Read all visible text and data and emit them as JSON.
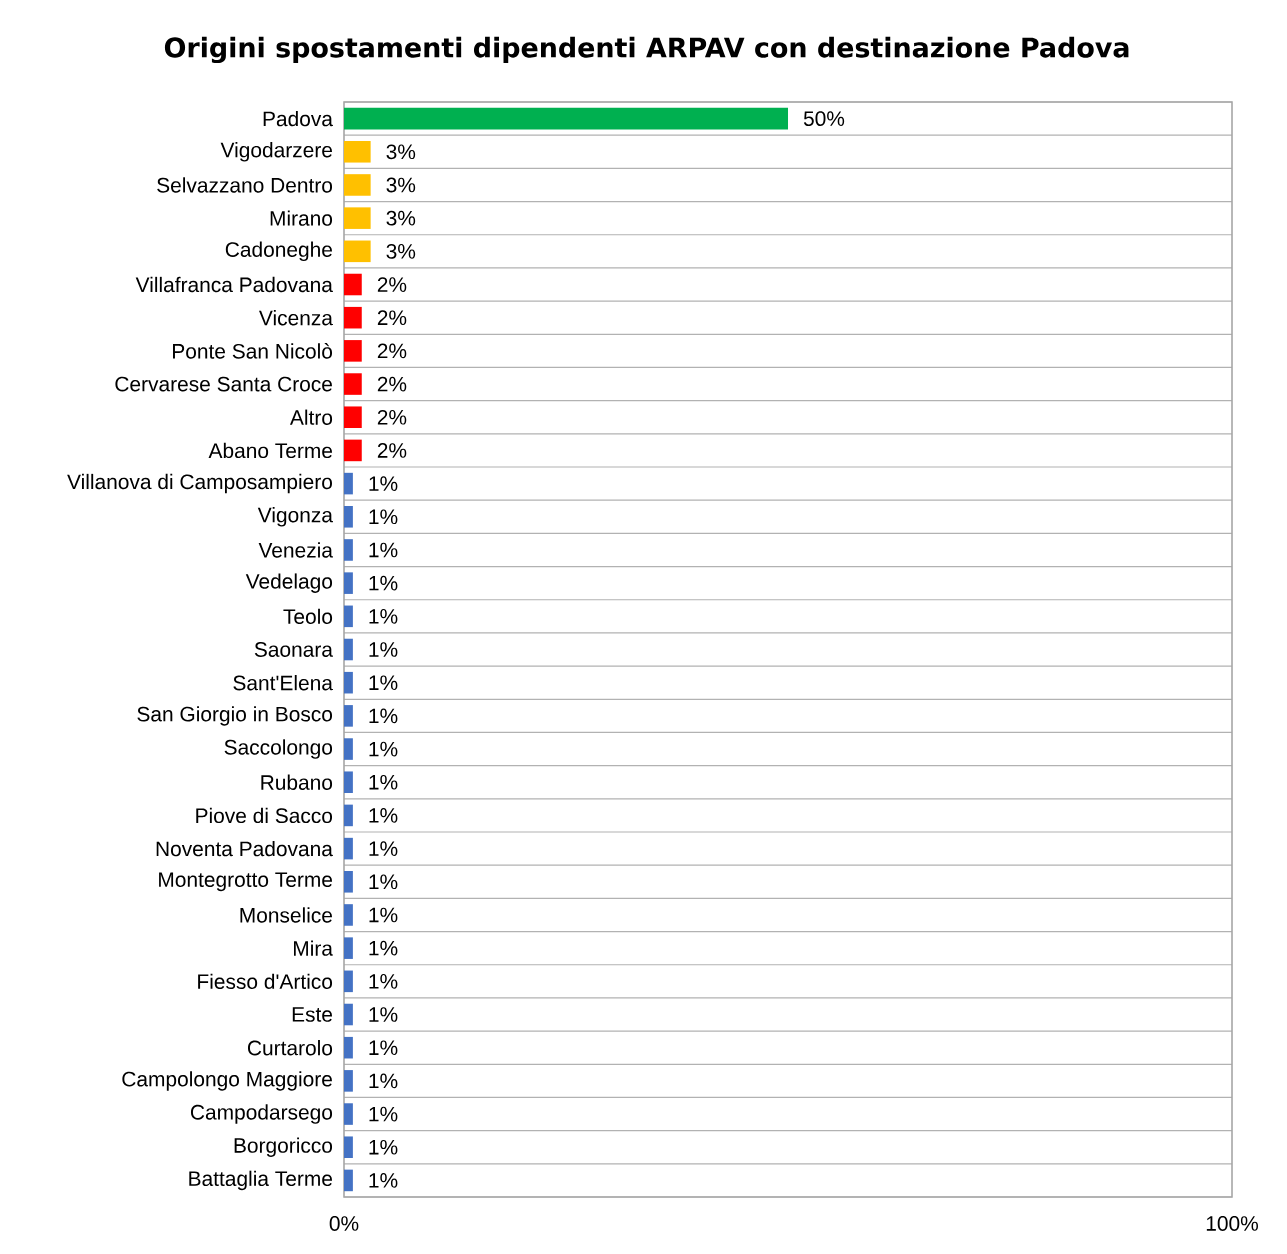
{
  "chart_data": {
    "type": "bar",
    "orientation": "horizontal",
    "title": "Origini spostamenti dipendenti ARPAV con destinazione Padova",
    "categories": [
      "Padova",
      "Vigodarzere",
      "Selvazzano Dentro",
      "Mirano",
      "Cadoneghe",
      "Villafranca Padovana",
      "Vicenza",
      "Ponte San Nicolò",
      "Cervarese Santa Croce",
      "Altro",
      "Abano Terme",
      "Villanova di Camposampiero",
      "Vigonza",
      "Venezia",
      "Vedelago",
      "Teolo",
      "Saonara",
      "Sant'Elena",
      "San Giorgio in Bosco",
      "Saccolongo",
      "Rubano",
      "Piove di Sacco",
      "Noventa Padovana",
      "Montegrotto Terme",
      "Monselice",
      "Mira",
      "Fiesso d'Artico",
      "Este",
      "Curtarolo",
      "Campolongo Maggiore",
      "Campodarsego",
      "Borgoricco",
      "Battaglia Terme"
    ],
    "values": [
      50,
      3,
      3,
      3,
      3,
      2,
      2,
      2,
      2,
      2,
      2,
      1,
      1,
      1,
      1,
      1,
      1,
      1,
      1,
      1,
      1,
      1,
      1,
      1,
      1,
      1,
      1,
      1,
      1,
      1,
      1,
      1,
      1
    ],
    "value_labels": [
      "50%",
      "3%",
      "3%",
      "3%",
      "3%",
      "2%",
      "2%",
      "2%",
      "2%",
      "2%",
      "2%",
      "1%",
      "1%",
      "1%",
      "1%",
      "1%",
      "1%",
      "1%",
      "1%",
      "1%",
      "1%",
      "1%",
      "1%",
      "1%",
      "1%",
      "1%",
      "1%",
      "1%",
      "1%",
      "1%",
      "1%",
      "1%",
      "1%"
    ],
    "colors": [
      "#00b050",
      "#ffc000",
      "#ffc000",
      "#ffc000",
      "#ffc000",
      "#ff0000",
      "#ff0000",
      "#ff0000",
      "#ff0000",
      "#ff0000",
      "#ff0000",
      "#4472c4",
      "#4472c4",
      "#4472c4",
      "#4472c4",
      "#4472c4",
      "#4472c4",
      "#4472c4",
      "#4472c4",
      "#4472c4",
      "#4472c4",
      "#4472c4",
      "#4472c4",
      "#4472c4",
      "#4472c4",
      "#4472c4",
      "#4472c4",
      "#4472c4",
      "#4472c4",
      "#4472c4",
      "#4472c4",
      "#4472c4",
      "#4472c4"
    ],
    "xlim": [
      0,
      100
    ],
    "xticks": [
      {
        "value": 0,
        "label": "0%"
      },
      {
        "value": 100,
        "label": "100%"
      }
    ],
    "grid": "y"
  }
}
